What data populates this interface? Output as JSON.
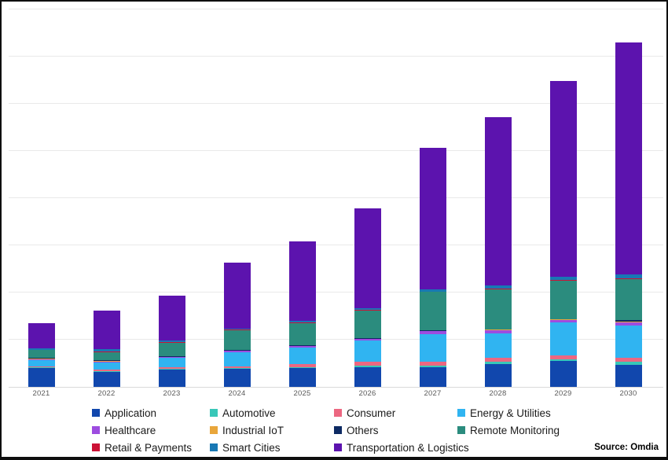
{
  "source_label": "Source: Omdia",
  "chart_data": {
    "type": "bar",
    "stacked": true,
    "title": "",
    "xlabel": "",
    "ylabel": "",
    "categories": [
      "2021",
      "2022",
      "2023",
      "2024",
      "2025",
      "2026",
      "2027",
      "2028",
      "2029",
      "2030"
    ],
    "series": [
      {
        "name": "Application",
        "color": "#1147ad",
        "values": [
          0.4,
          0.32,
          0.36,
          0.38,
          0.4,
          0.42,
          0.42,
          0.49,
          0.55,
          0.47
        ]
      },
      {
        "name": "Automotive",
        "color": "#38c7b8",
        "values": [
          0.02,
          0.02,
          0.02,
          0.02,
          0.02,
          0.03,
          0.03,
          0.04,
          0.03,
          0.06
        ]
      },
      {
        "name": "Consumer",
        "color": "#ec6781",
        "values": [
          0.02,
          0.03,
          0.03,
          0.03,
          0.06,
          0.08,
          0.08,
          0.08,
          0.08,
          0.08
        ]
      },
      {
        "name": "Energy & Utilities",
        "color": "#30b4f1",
        "values": [
          0.13,
          0.15,
          0.2,
          0.31,
          0.36,
          0.45,
          0.59,
          0.53,
          0.7,
          0.69
        ]
      },
      {
        "name": "Healthcare",
        "color": "#9d4ce0",
        "values": [
          0.02,
          0.02,
          0.02,
          0.02,
          0.02,
          0.03,
          0.06,
          0.06,
          0.06,
          0.06
        ]
      },
      {
        "name": "Industrial IoT",
        "color": "#e9a63b",
        "values": [
          0.01,
          0.01,
          0.01,
          0.01,
          0.01,
          0.01,
          0.01,
          0.01,
          0.01,
          0.02
        ]
      },
      {
        "name": "Others",
        "color": "#0d2a63",
        "values": [
          0.01,
          0.01,
          0.01,
          0.01,
          0.01,
          0.01,
          0.01,
          0.01,
          0.01,
          0.03
        ]
      },
      {
        "name": "Remote Monitoring",
        "color": "#2b8c7e",
        "values": [
          0.17,
          0.18,
          0.29,
          0.42,
          0.47,
          0.59,
          0.81,
          0.85,
          0.81,
          0.87
        ]
      },
      {
        "name": "Retail & Payments",
        "color": "#cc1236",
        "values": [
          0.01,
          0.01,
          0.01,
          0.01,
          0.01,
          0.01,
          0.01,
          0.01,
          0.01,
          0.02
        ]
      },
      {
        "name": "Smart Cities",
        "color": "#1878b4",
        "values": [
          0.03,
          0.05,
          0.03,
          0.03,
          0.04,
          0.04,
          0.05,
          0.07,
          0.08,
          0.08
        ]
      },
      {
        "name": "Transportation & Logistics",
        "color": "#5c13ae",
        "values": [
          0.53,
          0.82,
          0.96,
          1.4,
          1.68,
          2.11,
          3.0,
          3.56,
          4.15,
          4.92
        ]
      }
    ],
    "stack_order": "series listed bottom-to-top",
    "y_axis": {
      "tick_labels_visible": false,
      "gridlines": 8,
      "ylim": [
        0,
        8
      ],
      "note": "No numeric y-axis labels visible; values estimated in gridline units (1 unit = one gridline interval)."
    },
    "legend": {
      "position": "bottom",
      "columns": 4
    },
    "gridline_color": "#e9e9e9"
  }
}
